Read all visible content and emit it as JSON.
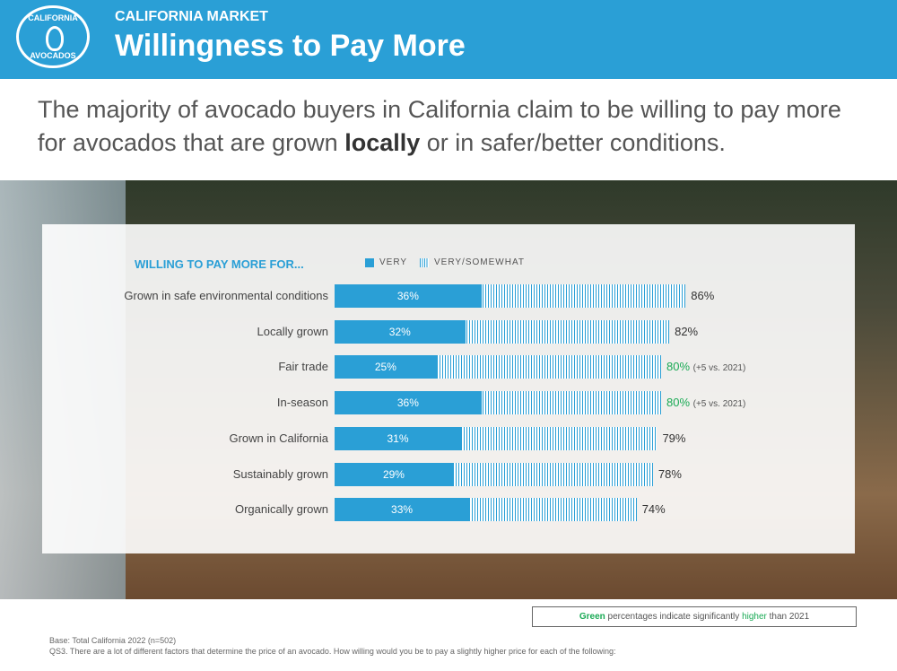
{
  "header": {
    "logo_top": "CALIFORNIA",
    "logo_bottom": "AVOCADOS",
    "kicker": "CALIFORNIA MARKET",
    "title": "Willingness to Pay More"
  },
  "lead": {
    "before": "The majority of avocado buyers in California claim to be willing to pay more for avocados that are grown ",
    "bold": "locally",
    "after": " or in safer/better conditions."
  },
  "colors": {
    "brand": "#2a9fd6",
    "significant": "#1aaa55"
  },
  "chart_data": {
    "type": "bar",
    "orientation": "horizontal",
    "stacked": "overlay",
    "title": "WILLING TO PAY MORE FOR...",
    "legend": [
      "VERY",
      "VERY/SOMEWHAT"
    ],
    "categories": [
      "Grown in safe environmental conditions",
      "Locally grown",
      "Fair trade",
      "In-season",
      "Grown in California",
      "Sustainably grown",
      "Organically grown"
    ],
    "series": [
      {
        "name": "VERY",
        "values": [
          36,
          32,
          25,
          36,
          31,
          29,
          33
        ]
      },
      {
        "name": "VERY/SOMEWHAT",
        "values": [
          86,
          82,
          80,
          80,
          79,
          78,
          74
        ]
      }
    ],
    "significant": [
      false,
      false,
      true,
      true,
      false,
      false,
      false
    ],
    "change_notes": [
      "",
      "",
      "(+5 vs. 2021)",
      "(+5 vs. 2021)",
      "",
      "",
      ""
    ],
    "unit": "%"
  },
  "note": {
    "green": "Green",
    "mid": " percentages indicate significantly ",
    "higher": "higher",
    "end": " than 2021"
  },
  "footer": {
    "base": "Base: Total California 2022 (n=502)",
    "question": "QS3. There are a lot of different factors that determine the price of an avocado. How willing would you be to pay a slightly higher price for each of the following:"
  }
}
